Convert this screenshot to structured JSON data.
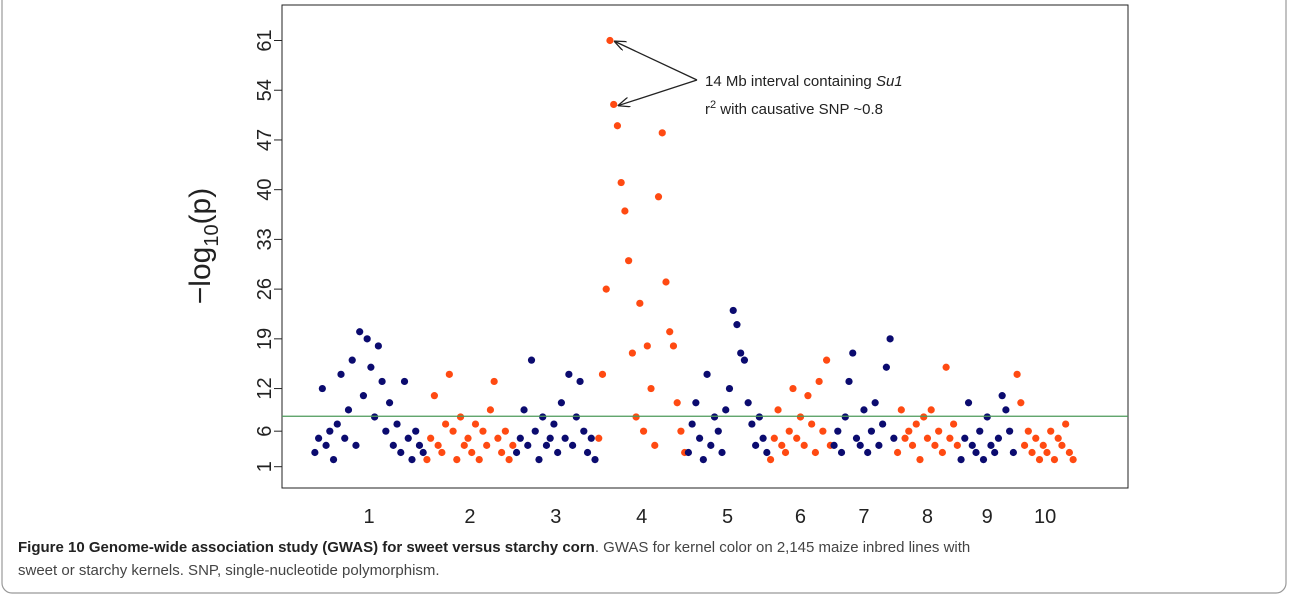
{
  "chart_data": {
    "type": "manhattan",
    "y_label": {
      "prefix": "−log",
      "sub": "10",
      "suffix": "(p)"
    },
    "ylim": [
      -2,
      66
    ],
    "yticks": [
      1,
      6,
      12,
      19,
      26,
      33,
      40,
      47,
      54,
      61
    ],
    "threshold": 8.1,
    "threshold_color": "#4c9a5a",
    "series": [
      {
        "name": "1",
        "color": "#0b0b6f",
        "values": [
          3,
          5,
          12,
          4,
          6,
          2,
          7,
          14,
          5,
          9,
          16,
          4,
          20,
          11,
          19,
          15,
          8,
          18,
          13,
          6,
          10,
          4,
          7,
          3,
          13,
          5,
          2,
          6,
          4,
          3
        ]
      },
      {
        "name": "2",
        "color": "#ff4a12",
        "values": [
          2,
          5,
          11,
          4,
          3,
          7,
          14,
          6,
          2,
          8,
          4,
          5,
          3,
          7,
          2,
          6,
          4,
          9,
          13,
          5,
          3,
          6,
          2,
          4
        ]
      },
      {
        "name": "3",
        "color": "#0b0b6f",
        "values": [
          3,
          5,
          9,
          4,
          16,
          6,
          2,
          8,
          4,
          5,
          7,
          3,
          10,
          5,
          14,
          4,
          8,
          13,
          6,
          3,
          5,
          2
        ]
      },
      {
        "name": "4",
        "color": "#ff4a12",
        "values": [
          5,
          14,
          26,
          61,
          52,
          49,
          41,
          37,
          30,
          17,
          8,
          24,
          6,
          18,
          12,
          4,
          39,
          48,
          27,
          20,
          18,
          10,
          6,
          3
        ]
      },
      {
        "name": "5",
        "color": "#0b0b6f",
        "values": [
          3,
          7,
          10,
          5,
          2,
          14,
          4,
          8,
          6,
          3,
          9,
          12,
          23,
          21,
          17,
          16,
          10,
          7,
          4,
          8,
          5,
          3
        ]
      },
      {
        "name": "6",
        "color": "#ff4a12",
        "values": [
          2,
          5,
          9,
          4,
          3,
          6,
          12,
          5,
          8,
          4,
          11,
          7,
          3,
          13,
          6,
          16,
          4
        ]
      },
      {
        "name": "7",
        "color": "#0b0b6f",
        "values": [
          4,
          6,
          3,
          8,
          13,
          17,
          5,
          4,
          9,
          3,
          6,
          10,
          4,
          7,
          15,
          19,
          5
        ]
      },
      {
        "name": "8",
        "color": "#ff4a12",
        "values": [
          3,
          9,
          5,
          6,
          4,
          7,
          2,
          8,
          5,
          9,
          4,
          6,
          3,
          15,
          5,
          7,
          4
        ]
      },
      {
        "name": "9",
        "color": "#0b0b6f",
        "values": [
          2,
          5,
          10,
          4,
          3,
          6,
          2,
          8,
          4,
          3,
          5,
          11,
          9,
          6,
          3
        ]
      },
      {
        "name": "10",
        "color": "#ff4a12",
        "values": [
          14,
          10,
          4,
          6,
          3,
          5,
          2,
          4,
          3,
          6,
          2,
          5,
          4,
          7,
          3,
          2
        ]
      }
    ],
    "annotation": {
      "line1": "14 Mb interval containing ",
      "gene": "Su1",
      "r": "r",
      "sup": "2",
      "line2": " with causative SNP ~0.8"
    }
  },
  "caption": {
    "title": "Figure 10 Genome-wide association study (GWAS) for sweet versus starchy corn",
    "lines": [
      ". GWAS for kernel color on 2,145 maize inbred lines with",
      "sweet or starchy kernels. SNP, single-nucleotide polymorphism."
    ]
  }
}
